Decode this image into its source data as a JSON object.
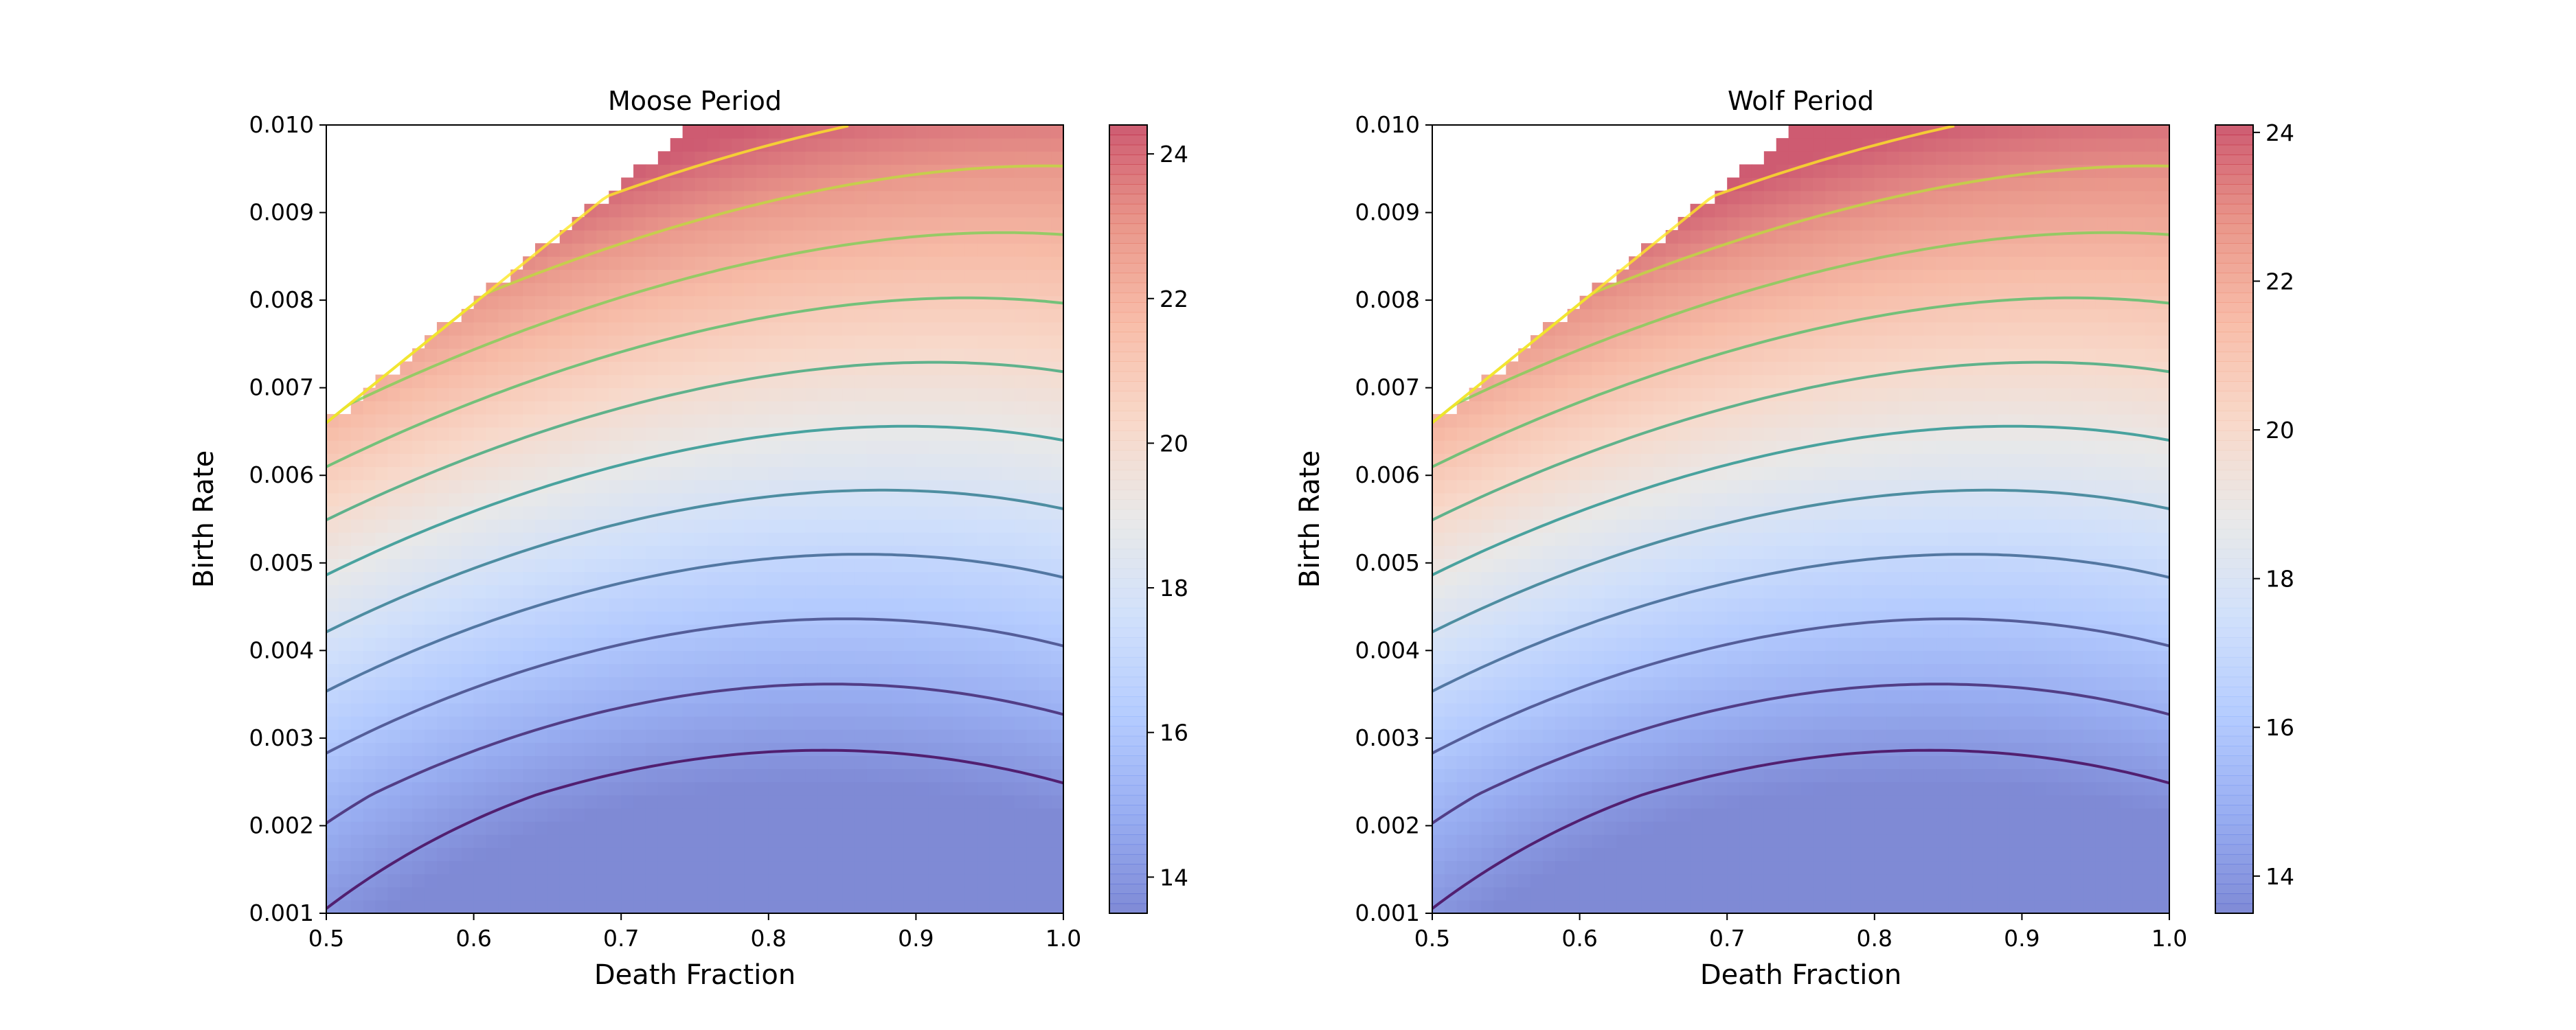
{
  "chart_data": [
    {
      "type": "heatmap",
      "title": "Moose Period",
      "xlabel": "Death Fraction",
      "ylabel": "Birth Rate",
      "xlim": [
        0.5,
        1.0
      ],
      "ylim": [
        0.001,
        0.01
      ],
      "x_ticks": [
        "0.5",
        "0.6",
        "0.7",
        "0.8",
        "0.9",
        "1.0"
      ],
      "y_ticks": [
        "0.001",
        "0.002",
        "0.003",
        "0.004",
        "0.005",
        "0.006",
        "0.007",
        "0.008",
        "0.009",
        "0.010"
      ],
      "colorbar": {
        "range": [
          13.5,
          24.4
        ],
        "ticks": [
          "14",
          "16",
          "18",
          "20",
          "22",
          "24"
        ],
        "colormap": "coolwarm"
      },
      "undefined_region": "Upper-left corner where birth rate exceeds the boundary is blank (no value)",
      "values_notes": "Period rises toward high birth rate and low death fraction; minimum near death fraction 1.0, birth rate 0.0015.",
      "contour_levels": [
        14,
        15,
        16,
        17,
        18,
        19,
        20,
        21,
        22,
        23,
        24
      ]
    },
    {
      "type": "heatmap",
      "title": "Wolf Period",
      "xlabel": "Death Fraction",
      "ylabel": "Birth Rate",
      "xlim": [
        0.5,
        1.0
      ],
      "ylim": [
        0.001,
        0.01
      ],
      "x_ticks": [
        "0.5",
        "0.6",
        "0.7",
        "0.8",
        "0.9",
        "1.0"
      ],
      "y_ticks": [
        "0.001",
        "0.002",
        "0.003",
        "0.004",
        "0.005",
        "0.006",
        "0.007",
        "0.008",
        "0.009",
        "0.010"
      ],
      "colorbar": {
        "range": [
          13.5,
          24.1
        ],
        "ticks": [
          "14",
          "16",
          "18",
          "20",
          "22",
          "24"
        ],
        "colormap": "coolwarm"
      },
      "undefined_region": "Upper-left corner where birth rate exceeds the boundary is blank (no value)",
      "values_notes": "Period rises toward high birth rate and low death fraction; minimum near death fraction 1.0, birth rate 0.0015.",
      "contour_levels": [
        14,
        15,
        16,
        17,
        18,
        19,
        20,
        21,
        22,
        23,
        24
      ]
    }
  ]
}
